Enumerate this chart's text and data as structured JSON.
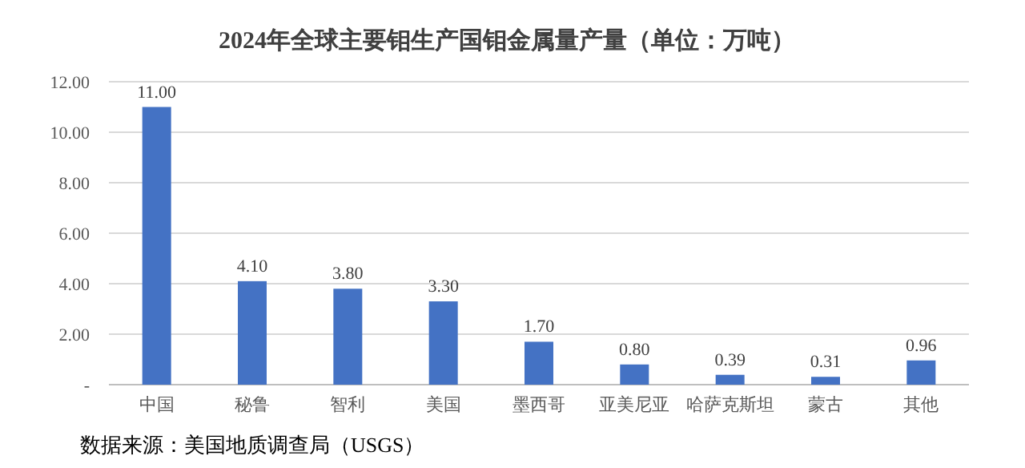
{
  "chart_data": {
    "type": "bar",
    "title": "2024年全球主要钼生产国钼金属量产量（单位：万吨）",
    "categories": [
      "中国",
      "秘鲁",
      "智利",
      "美国",
      "墨西哥",
      "亚美尼亚",
      "哈萨克斯坦",
      "蒙古",
      "其他"
    ],
    "values": [
      11.0,
      4.1,
      3.8,
      3.3,
      1.7,
      0.8,
      0.39,
      0.31,
      0.96
    ],
    "value_labels": [
      "11.00",
      "4.10",
      "3.80",
      "3.30",
      "1.70",
      "0.80",
      "0.39",
      "0.31",
      "0.96"
    ],
    "color": "#4472c4",
    "ylim": [
      0,
      12
    ],
    "yticks": [
      {
        "value": 0,
        "label": "-"
      },
      {
        "value": 2,
        "label": "2.00"
      },
      {
        "value": 4,
        "label": "4.00"
      },
      {
        "value": 6,
        "label": "6.00"
      },
      {
        "value": 8,
        "label": "8.00"
      },
      {
        "value": 10,
        "label": "10.00"
      },
      {
        "value": 12,
        "label": "12.00"
      }
    ],
    "grid": "y",
    "annotations": [
      "数据来源：美国地质调查局（USGS）"
    ]
  }
}
